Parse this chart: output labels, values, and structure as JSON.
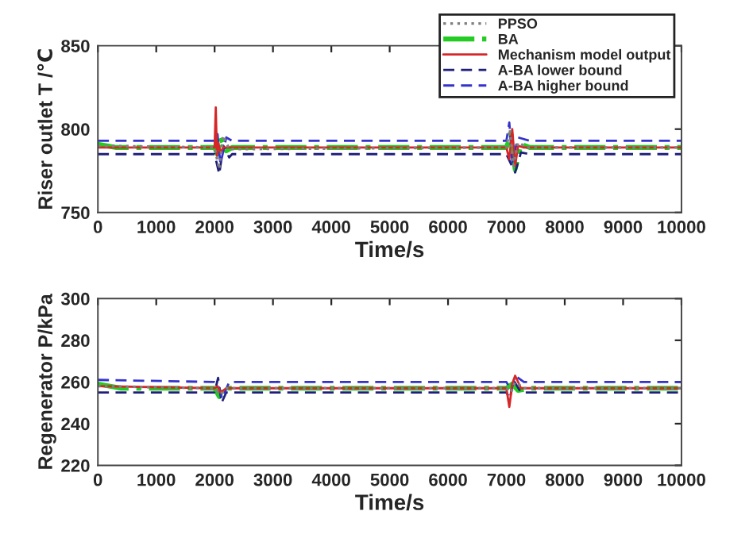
{
  "chart_data": [
    {
      "type": "line",
      "xlabel": "Time/s",
      "ylabel": "Riser outlet T /℃",
      "xlim": [
        0,
        10000
      ],
      "xticks": [
        0,
        1000,
        2000,
        3000,
        4000,
        5000,
        6000,
        7000,
        8000,
        9000,
        10000
      ],
      "ylim": [
        750,
        850
      ],
      "yticks": [
        750,
        800,
        850
      ],
      "grid": false,
      "legend": "top right",
      "series": [
        {
          "name": "PPSO",
          "color": "#808080",
          "line_style": "dotted",
          "x": [
            0,
            2000,
            2080,
            2150,
            2250,
            7000,
            7060,
            7120,
            7200,
            7350,
            10000
          ],
          "values": [
            790,
            789,
            776,
            796,
            788,
            789,
            800,
            778,
            792,
            789,
            789
          ]
        },
        {
          "name": "BA",
          "color": "#22cc22",
          "line_style": "dashdot",
          "x": [
            0,
            300,
            2000,
            2050,
            2100,
            2200,
            2300,
            7000,
            7080,
            7150,
            7250,
            7400,
            10000
          ],
          "values": [
            791,
            789,
            789,
            785,
            795,
            787,
            789,
            789,
            797,
            776,
            791,
            789,
            789
          ]
        },
        {
          "name": "Mechanism model output",
          "color": "#d62728",
          "line_style": "solid",
          "x": [
            0,
            2000,
            2020,
            2040,
            2060,
            2100,
            2150,
            2300,
            7000,
            7050,
            7100,
            7150,
            7200,
            7300,
            10000
          ],
          "values": [
            789,
            789,
            813,
            784,
            792,
            786,
            789,
            789,
            789,
            782,
            800,
            778,
            790,
            789,
            789
          ]
        },
        {
          "name": "A-BA lower bound",
          "color": "#1f1f7a",
          "line_style": "dashed",
          "x": [
            0,
            2000,
            2080,
            2150,
            2250,
            2300,
            7000,
            7080,
            7150,
            7250,
            7400,
            10000
          ],
          "values": [
            785,
            785,
            773,
            790,
            783,
            785,
            785,
            779,
            774,
            786,
            785,
            785
          ]
        },
        {
          "name": "A-BA higher bound",
          "color": "#3333cc",
          "line_style": "dashed",
          "x": [
            0,
            2000,
            2050,
            2100,
            2200,
            2300,
            7000,
            7050,
            7100,
            7200,
            7400,
            10000
          ],
          "values": [
            793,
            793,
            797,
            779,
            795,
            793,
            793,
            804,
            780,
            795,
            793,
            793
          ]
        }
      ]
    },
    {
      "type": "line",
      "xlabel": "Time/s",
      "ylabel": "Regenerator P/kPa",
      "xlim": [
        0,
        10000
      ],
      "xticks": [
        0,
        1000,
        2000,
        3000,
        4000,
        5000,
        6000,
        7000,
        8000,
        9000,
        10000
      ],
      "ylim": [
        220,
        300
      ],
      "yticks": [
        220,
        240,
        260,
        280,
        300
      ],
      "grid": false,
      "series": [
        {
          "color": "#808080",
          "line_style": "dotted",
          "x": [
            0,
            2000,
            2100,
            2200,
            7000,
            7080,
            7150,
            7300,
            10000
          ],
          "values": [
            258,
            257,
            254,
            257,
            257,
            255,
            260,
            257,
            257
          ]
        },
        {
          "color": "#22cc22",
          "line_style": "dashdot",
          "x": [
            0,
            400,
            2000,
            2080,
            2150,
            2250,
            7000,
            7100,
            7200,
            7400,
            10000
          ],
          "values": [
            259,
            257,
            257,
            253,
            258,
            257,
            257,
            259,
            256,
            257,
            257
          ]
        },
        {
          "color": "#d62728",
          "line_style": "solid",
          "x": [
            0,
            2000,
            2050,
            2100,
            2200,
            7000,
            7050,
            7100,
            7150,
            7250,
            10000
          ],
          "values": [
            258,
            257,
            258,
            255,
            257,
            257,
            248,
            259,
            263,
            257,
            257
          ]
        },
        {
          "color": "#1f1f7a",
          "line_style": "dashed",
          "x": [
            0,
            2000,
            2060,
            2120,
            2200,
            7000,
            7060,
            7120,
            7250,
            10000
          ],
          "values": [
            255,
            255,
            262,
            250,
            255,
            255,
            252,
            261,
            255,
            255
          ]
        },
        {
          "color": "#3333cc",
          "line_style": "dashed",
          "x": [
            0,
            2000,
            2060,
            2130,
            2250,
            7000,
            7080,
            7150,
            7300,
            10000
          ],
          "values": [
            261,
            260,
            259,
            252,
            260,
            260,
            256,
            263,
            260,
            260
          ]
        }
      ]
    }
  ]
}
